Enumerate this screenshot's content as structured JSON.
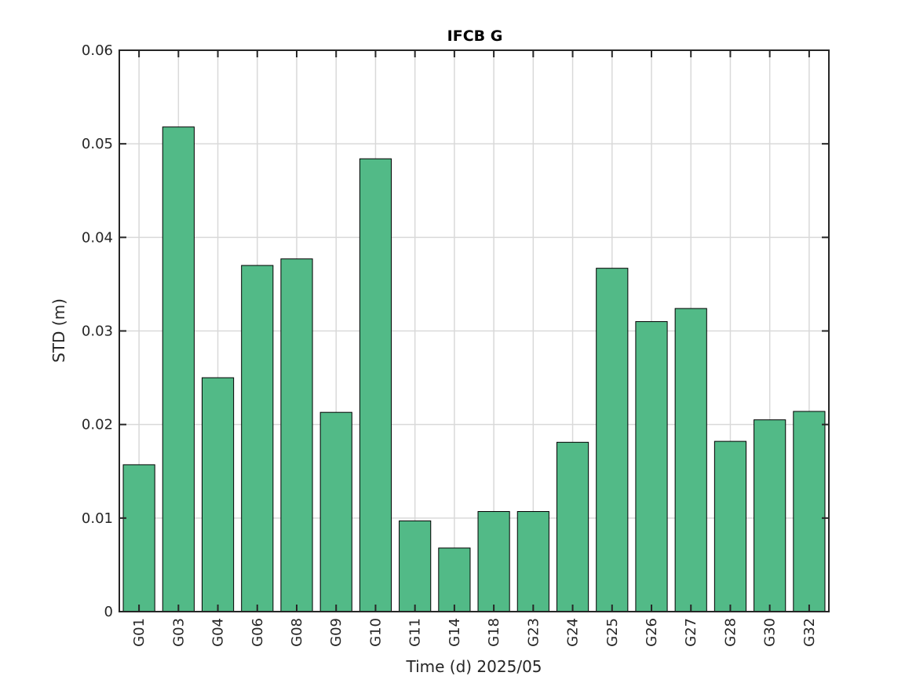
{
  "chart_data": {
    "type": "bar",
    "title": "IFCB G",
    "xlabel": "Time (d)  2025/05",
    "ylabel": "STD (m)",
    "categories": [
      "G01",
      "G03",
      "G04",
      "G06",
      "G08",
      "G09",
      "G10",
      "G11",
      "G14",
      "G18",
      "G23",
      "G24",
      "G25",
      "G26",
      "G27",
      "G28",
      "G30",
      "G32"
    ],
    "values": [
      0.0157,
      0.0518,
      0.025,
      0.037,
      0.0377,
      0.0213,
      0.0484,
      0.0097,
      0.0068,
      0.0107,
      0.0107,
      0.0181,
      0.0367,
      0.031,
      0.0324,
      0.0182,
      0.0205,
      0.0214
    ],
    "ylim": [
      0,
      0.06
    ],
    "yticks": [
      "0",
      "0.01",
      "0.02",
      "0.03",
      "0.04",
      "0.05",
      "0.06"
    ],
    "grid": true,
    "colors": {
      "bar": "#52ba87",
      "edge": "#000000"
    }
  }
}
